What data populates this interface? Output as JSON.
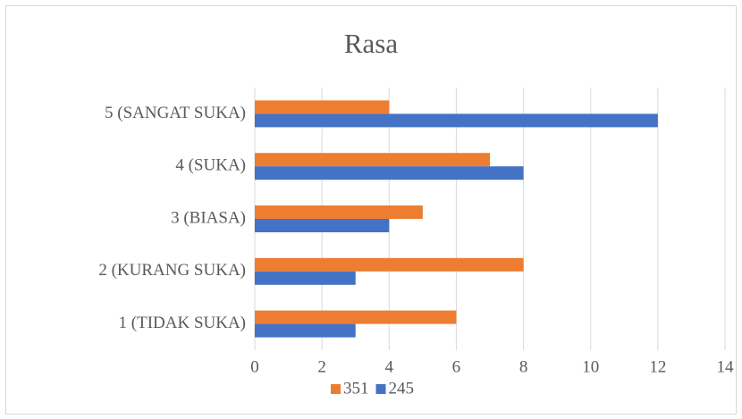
{
  "chart_data": {
    "type": "hbar",
    "title": "Rasa",
    "categories": [
      "1 (TIDAK SUKA)",
      "2 (KURANG SUKA)",
      "3 (BIASA)",
      "4 (SUKA)",
      "5 (SANGAT SUKA)"
    ],
    "series": [
      {
        "name": "351",
        "color": "#ed7d31",
        "values": [
          6,
          8,
          5,
          7,
          4
        ]
      },
      {
        "name": "245",
        "color": "#4472c4",
        "values": [
          3,
          3,
          4,
          8,
          12
        ]
      }
    ],
    "xlim": [
      0,
      14
    ],
    "xticks": [
      0,
      2,
      4,
      6,
      8,
      10,
      12,
      14
    ],
    "grid": true,
    "legend": "bottom"
  }
}
